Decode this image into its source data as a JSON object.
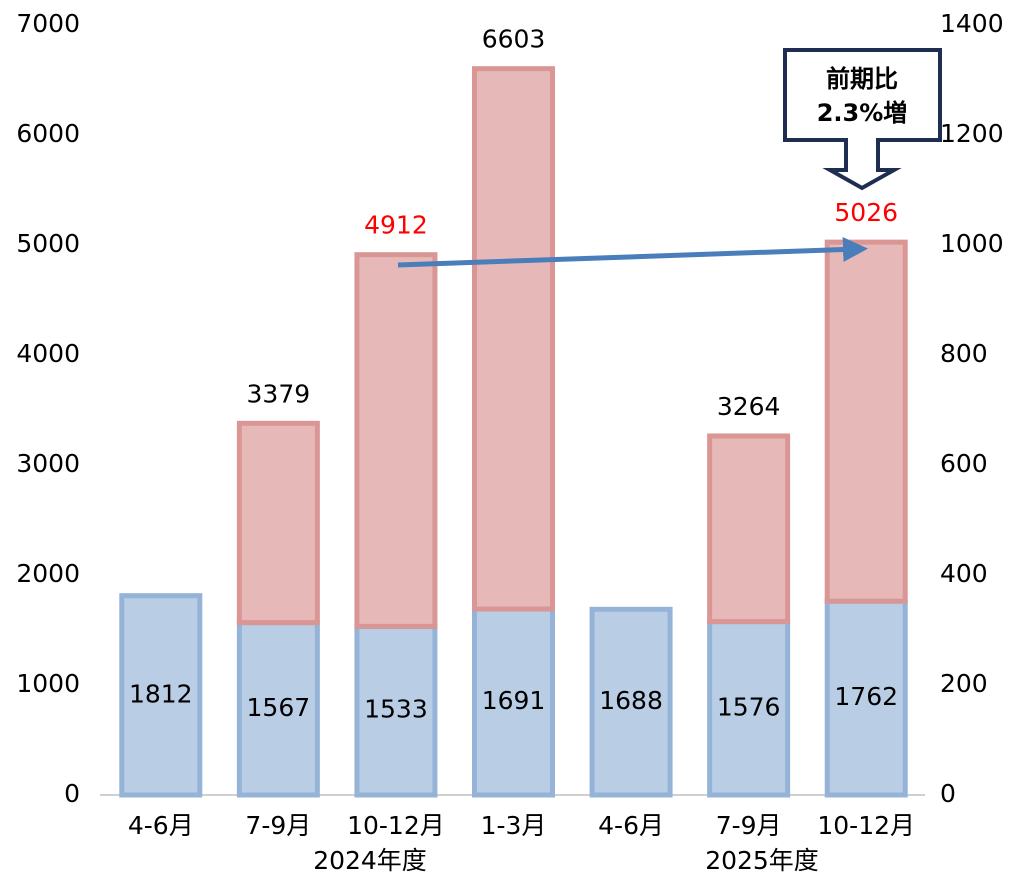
{
  "chart_data": {
    "type": "stacked_bar",
    "categories": [
      "4-6月",
      "7-9月",
      "10-12月",
      "1-3月",
      "4-6月",
      "7-9月",
      "10-12月"
    ],
    "group_labels": [
      "2024年度",
      "2025年度"
    ],
    "series": [
      {
        "color": "#b9cde5",
        "edge": "#95b3d7",
        "values": [
          1812,
          1567,
          1533,
          1691,
          1688,
          1576,
          1762
        ]
      },
      {
        "color": "#e6b9b8",
        "edge": "#d99694",
        "values": [
          null,
          1812,
          3379,
          4912,
          null,
          1688,
          3264
        ]
      }
    ],
    "totals": [
      null,
      3379,
      4912,
      6603,
      null,
      3264,
      5026
    ],
    "total_label_colors": [
      null,
      "#000000",
      "#ff0000",
      "#000000",
      null,
      "#000000",
      "#ff0000"
    ],
    "ylim": [
      0,
      7000
    ],
    "yticks": [
      0,
      1000,
      2000,
      3000,
      4000,
      5000,
      6000,
      7000
    ],
    "y2lim": [
      0,
      1400
    ],
    "y2ticks": [
      0,
      200,
      400,
      600,
      800,
      1000,
      1200,
      1400
    ],
    "annotation": [
      "前期比",
      "2.3%増"
    ]
  }
}
